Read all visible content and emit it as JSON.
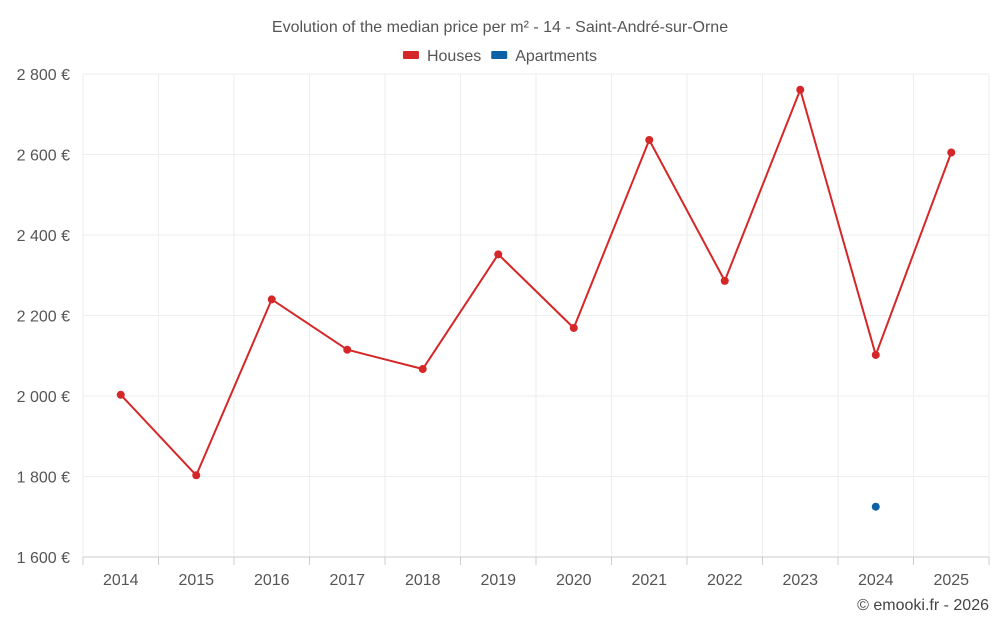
{
  "chart_data": {
    "type": "line",
    "title": "Evolution of the median price per m² - 14 - Saint-André-sur-Orne",
    "categories": [
      "2014",
      "2015",
      "2016",
      "2017",
      "2018",
      "2019",
      "2020",
      "2021",
      "2022",
      "2023",
      "2024",
      "2025"
    ],
    "series": [
      {
        "name": "Houses",
        "color": "#d62728",
        "values": [
          2003,
          1803,
          2240,
          2115,
          2067,
          2352,
          2169,
          2636,
          2286,
          2761,
          2102,
          2605
        ]
      },
      {
        "name": "Apartments",
        "color": "#0b61a4",
        "values": [
          null,
          null,
          null,
          null,
          null,
          null,
          null,
          null,
          null,
          null,
          1725,
          null
        ]
      }
    ],
    "yticks": [
      "1 600 €",
      "1 800 €",
      "2 000 €",
      "2 200 €",
      "2 400 €",
      "2 600 €",
      "2 800 €"
    ],
    "ylim": [
      1600,
      2800
    ],
    "xlabel": "",
    "ylabel": "",
    "grid": true,
    "legend": "top-center"
  },
  "credit": "© emooki.fr - 2026"
}
